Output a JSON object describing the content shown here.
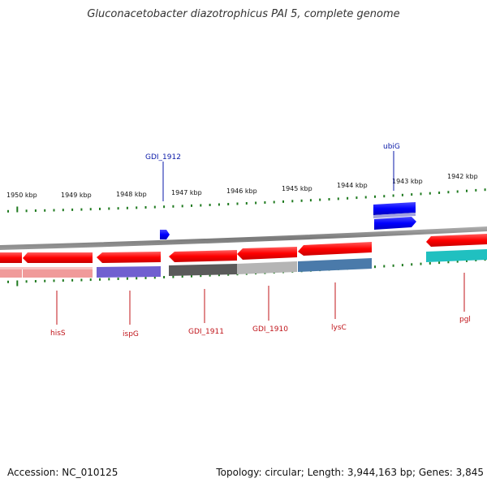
{
  "title": "Gluconacetobacter diazotrophicus PAI 5, complete genome",
  "footer": {
    "accession": "Accession: NC_010125",
    "topology": "Topology: circular; Length: 3,944,163 bp; Genes: 3,845"
  },
  "scale_labels": [
    "1950 kbp",
    "1949 kbp",
    "1948 kbp",
    "1947 kbp",
    "1946 kbp",
    "1945 kbp",
    "1944 kbp",
    "1943 kbp",
    "1942 kbp"
  ],
  "gene_labels": {
    "top": [
      "GDI_1912",
      "ubiG"
    ],
    "bottom": [
      "hisS",
      "ispG",
      "GDI_1911",
      "GDI_1910",
      "lysC",
      "pgl"
    ]
  },
  "colors": {
    "gene_red": "#ff0000",
    "gene_blue": "#0000ff",
    "backbone": "#888888",
    "tick_green": "#1f7a1f",
    "top_label": "#0a1aa8",
    "bottom_label": "#c0141a"
  }
}
